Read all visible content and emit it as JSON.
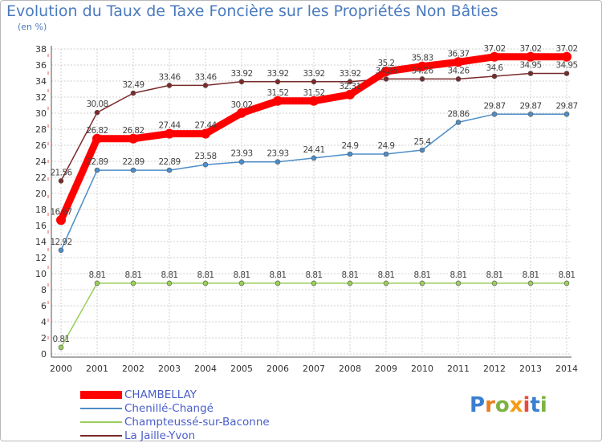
{
  "title": "Evolution du Taux de Taxe Foncière sur les Propriétés Non Bâties",
  "unit_label": "(en %)",
  "logo_text": "Proxiti",
  "chart_data": {
    "type": "line",
    "title": "Evolution du Taux de Taxe Foncière sur les Propriétés Non Bâties",
    "ylabel": "(en %)",
    "xlabel": "",
    "ylim": [
      0,
      38
    ],
    "y_ticks": [
      0,
      2,
      4,
      6,
      8,
      10,
      12,
      14,
      16,
      18,
      20,
      22,
      24,
      26,
      28,
      30,
      32,
      34,
      36,
      38
    ],
    "grid": true,
    "legend_position": "bottom-left",
    "categories": [
      "2000",
      "2001",
      "2002",
      "2003",
      "2004",
      "2005",
      "2006",
      "2007",
      "2008",
      "2009",
      "2010",
      "2011",
      "2012",
      "2013",
      "2014"
    ],
    "series": [
      {
        "name": "CHAMBELLAY",
        "color": "#ff0000",
        "labels": [
          "16.67",
          "26.82",
          "26.82",
          "27.44",
          "27.44",
          "30.02",
          "31.52",
          "31.52",
          "32.31",
          "35.2",
          "35.83",
          "36.37",
          "37.02",
          "37.02",
          "37.02"
        ],
        "values": [
          16.67,
          26.82,
          26.82,
          27.44,
          27.44,
          30.02,
          31.52,
          31.52,
          32.31,
          35.2,
          35.83,
          36.37,
          37.02,
          37.02,
          37.02
        ]
      },
      {
        "name": "Chenillé-Changé",
        "color": "#4d8dc8",
        "labels": [
          "12.92",
          "22.89",
          "22.89",
          "22.89",
          "23.58",
          "23.93",
          "23.93",
          "24.41",
          "24.9",
          "24.9",
          "25.4",
          "28.86",
          "29.87",
          "29.87",
          "29.87"
        ],
        "values": [
          12.92,
          22.89,
          22.89,
          22.89,
          23.58,
          23.93,
          23.93,
          24.41,
          24.9,
          24.9,
          25.4,
          28.86,
          29.87,
          29.87,
          29.87
        ]
      },
      {
        "name": "Champteussé-sur-Baconne",
        "color": "#9acd5a",
        "labels": [
          "0.81",
          "8.81",
          "8.81",
          "8.81",
          "8.81",
          "8.81",
          "8.81",
          "8.81",
          "8.81",
          "8.81",
          "8.81",
          "8.81",
          "8.81",
          "8.81",
          "8.81"
        ],
        "values": [
          0.81,
          8.81,
          8.81,
          8.81,
          8.81,
          8.81,
          8.81,
          8.81,
          8.81,
          8.81,
          8.81,
          8.81,
          8.81,
          8.81,
          8.81
        ]
      },
      {
        "name": "La Jaille-Yvon",
        "color": "#7a2a2a",
        "labels": [
          "21.56",
          "30.08",
          "32.49",
          "33.46",
          "33.46",
          "33.92",
          "33.92",
          "33.92",
          "33.92",
          "34.26",
          "34.26",
          "34.26",
          "34.6",
          "34.95",
          "34.95"
        ],
        "values": [
          21.56,
          30.08,
          32.49,
          33.46,
          33.46,
          33.92,
          33.92,
          33.92,
          33.92,
          34.26,
          34.26,
          34.26,
          34.6,
          34.95,
          34.95
        ]
      }
    ]
  }
}
